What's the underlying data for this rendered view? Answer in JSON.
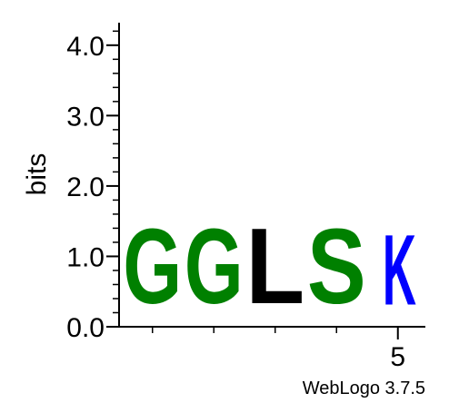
{
  "chart_data": {
    "type": "sequence-logo",
    "ylabel": "bits",
    "ylim": [
      0,
      4.32
    ],
    "yticks_major": [
      {
        "value": 0.0,
        "label": "0.0"
      },
      {
        "value": 1.0,
        "label": "1.0"
      },
      {
        "value": 2.0,
        "label": "2.0"
      },
      {
        "value": 3.0,
        "label": "3.0"
      },
      {
        "value": 4.0,
        "label": "4.0"
      }
    ],
    "y_minor_step": 0.2,
    "positions": [
      {
        "index": 1,
        "letters": [
          {
            "char": "G",
            "bits": 1.7,
            "color": "#008000"
          }
        ]
      },
      {
        "index": 2,
        "letters": [
          {
            "char": "G",
            "bits": 1.7,
            "color": "#008000"
          }
        ]
      },
      {
        "index": 3,
        "letters": [
          {
            "char": "L",
            "bits": 1.72,
            "color": "#000000"
          }
        ]
      },
      {
        "index": 4,
        "letters": [
          {
            "char": "S",
            "bits": 1.7,
            "color": "#008000"
          }
        ]
      },
      {
        "index": 5,
        "letters": [
          {
            "char": "K",
            "bits": 1.6,
            "color": "#0000ff"
          }
        ]
      }
    ],
    "x_tick_labels": [
      {
        "position": 5,
        "label": "5"
      }
    ],
    "footer": "WebLogo 3.7.5"
  }
}
